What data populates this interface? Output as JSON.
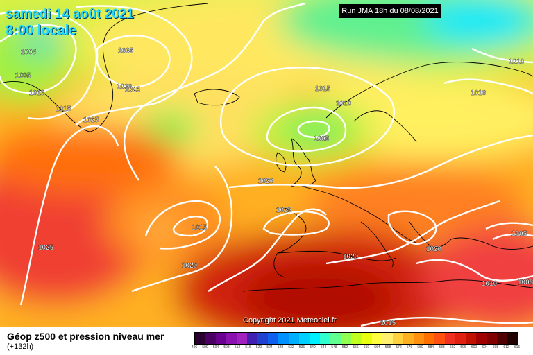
{
  "header": {
    "date": "samedi 14 août 2021",
    "time": "8:00 locale",
    "run": "Run JMA 18h du 08/08/2021"
  },
  "footer": {
    "title": "Géop z500 et pression niveau mer",
    "lead": "(+132h)",
    "copyright": "Copyright 2021 Meteociel.fr"
  },
  "legend": {
    "values": [
      "496",
      "500",
      "504",
      "508",
      "512",
      "516",
      "520",
      "524",
      "528",
      "532",
      "536",
      "540",
      "544",
      "548",
      "552",
      "556",
      "560",
      "564",
      "568",
      "572",
      "576",
      "580",
      "584",
      "588",
      "592",
      "596",
      "600",
      "604",
      "608",
      "612",
      "616"
    ],
    "colors": [
      "#2a0030",
      "#4a0060",
      "#6a0090",
      "#8a10b0",
      "#a020c0",
      "#4020b0",
      "#2040d0",
      "#1060f0",
      "#0090ff",
      "#00b0ff",
      "#00d0ff",
      "#00f0ff",
      "#30ffd0",
      "#60ff90",
      "#90ff50",
      "#c0ff20",
      "#e8ff10",
      "#ffff40",
      "#fff070",
      "#ffd040",
      "#ffb020",
      "#ff9010",
      "#ff7000",
      "#ff5010",
      "#f03020",
      "#e02010",
      "#c01000",
      "#a00000",
      "#800000",
      "#500000",
      "#200000"
    ]
  },
  "isobars": [
    "1005",
    "1005",
    "1010",
    "1015",
    "1025",
    "1035",
    "1030",
    "1025",
    "1015",
    "1010",
    "1005",
    "1010",
    "1010",
    "1020",
    "1025",
    "1015",
    "1025",
    "1020",
    "1020",
    "1020",
    "1005",
    "1010",
    "1008",
    "1015"
  ]
}
